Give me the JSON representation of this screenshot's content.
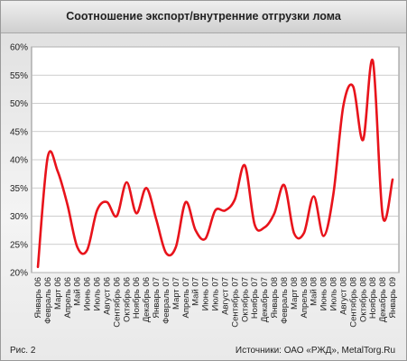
{
  "figure_label": "Рис. 2",
  "source": "Источники: ОАО «РЖД», MetalTorg.Ru",
  "chart_data": {
    "type": "line",
    "title": "Соотношение экспорт/внутренние отгрузки лома",
    "xlabel": "",
    "ylabel": "",
    "ylim": [
      20,
      60
    ],
    "yticks": [
      "20%",
      "25%",
      "30%",
      "35%",
      "40%",
      "45%",
      "50%",
      "55%",
      "60%"
    ],
    "grid": true,
    "line_color": "#e8131b",
    "categories": [
      "Январь 06",
      "Февраль 06",
      "Март 06",
      "Апрель 06",
      "Май 06",
      "Июнь 06",
      "Июль 06",
      "Август 06",
      "Сентябрь 06",
      "Октябрь 06",
      "Ноябрь 06",
      "Декабрь 06",
      "Январь 07",
      "Февраль 07",
      "Март 07",
      "Апрель 07",
      "Май 07",
      "Июнь 07",
      "Июль 07",
      "Август 07",
      "Сентябрь 07",
      "Октябрь 07",
      "Ноябрь 07",
      "Декабрь 07",
      "Январь 08",
      "Февраль 08",
      "Март 08",
      "Апрель 08",
      "Май 08",
      "Июнь 08",
      "Июль 08",
      "Август 08",
      "Сентябрь 08",
      "Октябрь 08",
      "Ноябрь 08",
      "Декабрь 08",
      "Январь 09"
    ],
    "values": [
      21.0,
      40.5,
      38.0,
      32.0,
      24.5,
      24.0,
      31.0,
      32.5,
      30.0,
      36.0,
      30.5,
      35.0,
      29.5,
      23.5,
      24.5,
      32.5,
      27.5,
      26.0,
      31.0,
      31.0,
      33.0,
      39.0,
      28.5,
      28.0,
      30.5,
      35.5,
      27.0,
      27.0,
      33.5,
      26.5,
      34.0,
      49.5,
      53.0,
      43.5,
      57.5,
      30.0,
      36.5
    ]
  }
}
